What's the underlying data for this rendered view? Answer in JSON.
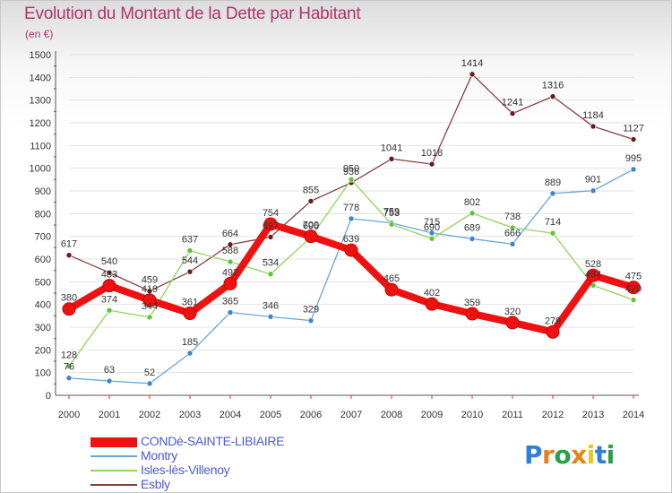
{
  "header": {
    "title": "Evolution du Montant de la Dette par Habitant",
    "unit": "(en €)"
  },
  "logo": {
    "text": "Proxiti",
    "colors": [
      "#2f7fd8",
      "#e8811c",
      "#2e9e4c",
      "#e8811c",
      "#e8c81c",
      "#2f7fd8",
      "#2e9e4c"
    ]
  },
  "chart_data": {
    "type": "line",
    "x": [
      "2000",
      "2001",
      "2002",
      "2003",
      "2004",
      "2005",
      "2006",
      "2007",
      "2008",
      "2009",
      "2010",
      "2011",
      "2012",
      "2013",
      "2014"
    ],
    "ylim": [
      0,
      1500
    ],
    "yticks": [
      0,
      100,
      200,
      300,
      400,
      500,
      600,
      700,
      800,
      900,
      1000,
      1100,
      1200,
      1300,
      1400,
      1500
    ],
    "grid": true,
    "legend_position": "bottom-left",
    "series": [
      {
        "name": "CONDé-SAINTE-LIBIAIRE",
        "color": "#ee1111",
        "marker_color": "#ee1111",
        "values": [
          380,
          483,
          419,
          361,
          492,
          754,
          700,
          639,
          465,
          402,
          359,
          320,
          279,
          528,
          475
        ],
        "labels": [
          "380",
          "483",
          "419",
          "361",
          "492",
          "754",
          "700",
          "639",
          "465",
          "402",
          "359",
          "320",
          "279",
          "528",
          "475"
        ]
      },
      {
        "name": "Montry",
        "color": "#6aa6d8",
        "marker_color": "#3a86cc",
        "values": [
          76,
          63,
          52,
          185,
          365,
          346,
          329,
          778,
          759,
          715,
          689,
          666,
          889,
          901,
          995
        ],
        "labels": [
          "76",
          "63",
          "52",
          "185",
          "365",
          "346",
          "329",
          "778",
          "759",
          "715",
          "689",
          "666",
          "889",
          "901",
          "995"
        ]
      },
      {
        "name": "Isles-lès-Villenoy",
        "color": "#8fd45c",
        "marker_color": "#5cc43a",
        "values": [
          128,
          374,
          344,
          637,
          588,
          534,
          696,
          950,
          753,
          690,
          802,
          738,
          714,
          484,
          420
        ],
        "labels": [
          "128",
          "374",
          "344",
          "637",
          "588",
          "534",
          "696",
          "950",
          "753",
          "690",
          "802",
          "738",
          "714",
          "484",
          "420"
        ]
      },
      {
        "name": "Esbly",
        "color": "#8a4040",
        "marker_color": "#6a1a1a",
        "values": [
          617,
          540,
          459,
          544,
          664,
          697,
          855,
          936,
          1041,
          1018,
          1414,
          1241,
          1316,
          1184,
          1127
        ],
        "labels": [
          "617",
          "540",
          "459",
          "544",
          "664",
          "697",
          "855",
          "936",
          "1041",
          "1018",
          "1414",
          "1241",
          "1316",
          "1184",
          "1127"
        ]
      }
    ]
  }
}
